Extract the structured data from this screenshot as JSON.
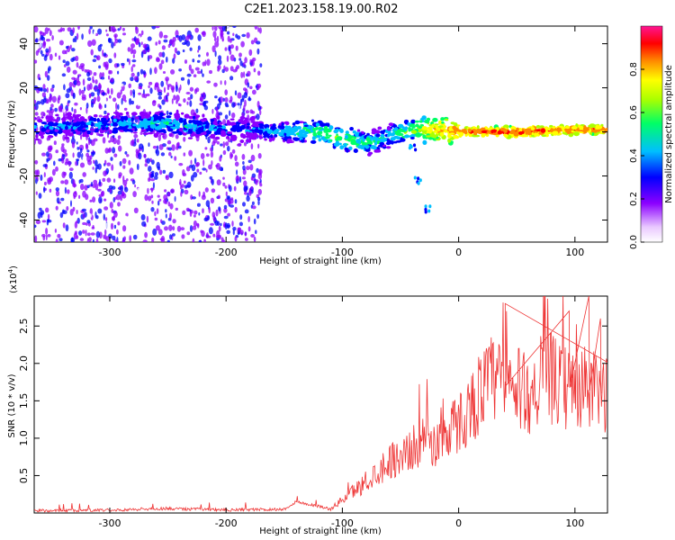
{
  "title": "C2E1.2023.158.19.00.R02",
  "chart_data": [
    {
      "type": "heatmap",
      "xlabel": "Height of straight line (km)",
      "ylabel": "Frequency (Hz)",
      "xlim": [
        -365,
        128
      ],
      "ylim": [
        -50,
        48
      ],
      "x_ticks": [
        -300,
        -200,
        -100,
        0,
        100
      ],
      "y_ticks": [
        -40,
        -20,
        0,
        20,
        40
      ],
      "colorbar": {
        "label": "Normalized spectral amplitude",
        "range": [
          0,
          1
        ],
        "ticks": [
          0.0,
          0.2,
          0.4,
          0.6,
          0.8
        ],
        "colors": [
          "#ffffff",
          "#8b00ff",
          "#0000ff",
          "#00bfff",
          "#00ff66",
          "#aaff00",
          "#ffff00",
          "#ff8800",
          "#ff0000",
          "#ff1493"
        ]
      },
      "ridge": [
        {
          "x": -360,
          "y": 2,
          "amp": 0.35
        },
        {
          "x": -320,
          "y": 3,
          "amp": 0.38
        },
        {
          "x": -280,
          "y": 4,
          "amp": 0.42
        },
        {
          "x": -250,
          "y": 4,
          "amp": 0.45
        },
        {
          "x": -220,
          "y": 2,
          "amp": 0.4
        },
        {
          "x": -180,
          "y": 1,
          "amp": 0.35
        },
        {
          "x": -150,
          "y": 0,
          "amp": 0.45
        },
        {
          "x": -120,
          "y": 0,
          "amp": 0.55
        },
        {
          "x": -100,
          "y": -3,
          "amp": 0.6
        },
        {
          "x": -80,
          "y": -5,
          "amp": 0.5
        },
        {
          "x": -60,
          "y": -2,
          "amp": 0.45
        },
        {
          "x": -40,
          "y": 1,
          "amp": 0.6
        },
        {
          "x": -20,
          "y": 1,
          "amp": 0.8
        },
        {
          "x": 0,
          "y": 0,
          "amp": 0.9
        },
        {
          "x": 50,
          "y": 0,
          "amp": 0.95
        },
        {
          "x": 100,
          "y": 1,
          "amp": 0.9
        },
        {
          "x": 128,
          "y": 1,
          "amp": 0.85
        }
      ],
      "scatter_region": {
        "x": [
          -365,
          -170
        ],
        "y": [
          -50,
          48
        ]
      },
      "trail": [
        {
          "x": -45,
          "y": 3
        },
        {
          "x": -40,
          "y": -8
        },
        {
          "x": -35,
          "y": -22
        },
        {
          "x": -27,
          "y": -35
        }
      ]
    },
    {
      "type": "line",
      "xlabel": "Height of straight line (km)",
      "ylabel": "SNR (10 * v/v)",
      "scale_label": "(x10",
      "scale_exp": "4",
      "scale_close": ")",
      "xlim": [
        -365,
        128
      ],
      "ylim": [
        0,
        29000
      ],
      "x_ticks": [
        -300,
        -200,
        -100,
        0,
        100
      ],
      "y_ticks": [
        5000,
        10000,
        15000,
        20000,
        25000
      ],
      "y_tick_labels": [
        "0.5",
        "1.0",
        "1.5",
        "2.0",
        "2.5"
      ],
      "color": "#ee3333",
      "series": [
        {
          "x": [
            -365,
            -300,
            -250,
            -200,
            -150,
            -140,
            -120,
            -110,
            -100,
            -90,
            -80,
            -70,
            -60,
            -50,
            -40,
            -30,
            -20,
            -10,
            0,
            10,
            20,
            30,
            40,
            50,
            60,
            70,
            80,
            90,
            100,
            110,
            120,
            128
          ],
          "y": [
            300,
            400,
            600,
            400,
            500,
            1500,
            900,
            500,
            1800,
            3000,
            4000,
            5500,
            7000,
            7500,
            8500,
            10000,
            9000,
            11000,
            12000,
            14000,
            16500,
            18000,
            17000,
            16500,
            16000,
            17000,
            18000,
            16500,
            17000,
            16500,
            16000,
            16000
          ]
        },
        {
          "x": [
            40,
            95,
            112,
            122
          ],
          "y": [
            28000,
            27000,
            29000,
            26000
          ]
        }
      ]
    }
  ]
}
